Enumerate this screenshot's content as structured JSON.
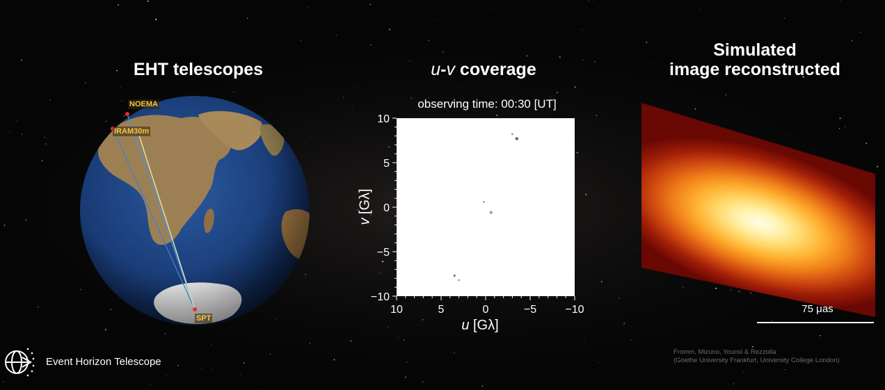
{
  "panels": {
    "telescopes_title": "EHT telescopes",
    "uv_title_u": "u",
    "uv_title_sep": "-",
    "uv_title_v": "v",
    "uv_title_rest": " coverage",
    "sim_title_line1": "Simulated",
    "sim_title_line2": "image reconstructed"
  },
  "globe": {
    "stations": [
      "NOEMA",
      "IRAM30m",
      "SPT"
    ],
    "colors": {
      "ocean": "#1c3f7a",
      "land": "#a0865a",
      "ice": "#f5f5f5",
      "station": "#e0302a",
      "label": "#f2c94c"
    }
  },
  "uv_plot": {
    "observing_time": "observing time: 00:30 [UT]",
    "xlabel_var": "u",
    "xlabel_unit": " [Gλ]",
    "ylabel_var": "v",
    "ylabel_unit": " [Gλ]"
  },
  "chart_data": {
    "type": "scatter",
    "xlim": [
      10,
      -10
    ],
    "ylim": [
      -10,
      10
    ],
    "x_ticks": [
      "10",
      "5",
      "0",
      "−5",
      "−10"
    ],
    "y_ticks": [
      "10",
      "5",
      "0",
      "−5",
      "−10"
    ],
    "points": [
      {
        "x": -3.5,
        "y": 7.7
      },
      {
        "x": -3.0,
        "y": 8.2
      },
      {
        "x": 0.2,
        "y": 0.6
      },
      {
        "x": -0.6,
        "y": -0.6
      },
      {
        "x": 3.5,
        "y": -7.7
      },
      {
        "x": 3.0,
        "y": -8.2
      }
    ]
  },
  "simulation": {
    "scale_label": "75 μas",
    "credit_line1": "Fromm, Mizuno, Younsi & Rezzolla",
    "credit_line2": "(Goethe University Frankfurt, University College London)"
  },
  "footer": {
    "org_name": "Event Horizon Telescope",
    "logo_icon": "globe-arrow-icon"
  }
}
